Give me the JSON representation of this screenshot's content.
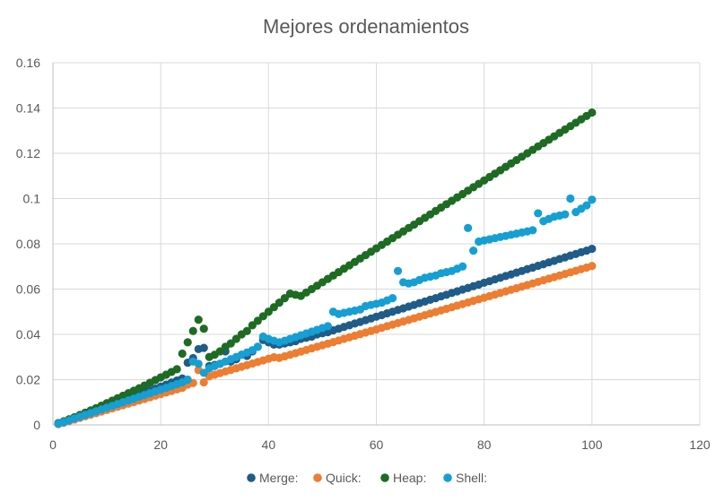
{
  "chart_data": {
    "type": "scatter",
    "title": "Mejores ordenamientos",
    "xlabel": "",
    "ylabel": "",
    "xlim": [
      0,
      120
    ],
    "ylim": [
      0,
      0.16
    ],
    "x_ticks": [
      "0",
      "20",
      "40",
      "60",
      "80",
      "100",
      "120"
    ],
    "y_ticks": [
      "0",
      "0.02",
      "0.04",
      "0.06",
      "0.08",
      "0.1",
      "0.12",
      "0.14",
      "0.16"
    ],
    "grid": true,
    "legend_position": "bottom",
    "x": [
      1,
      2,
      3,
      4,
      5,
      6,
      7,
      8,
      9,
      10,
      11,
      12,
      13,
      14,
      15,
      16,
      17,
      18,
      19,
      20,
      21,
      22,
      23,
      24,
      25,
      26,
      27,
      28,
      29,
      30,
      31,
      32,
      33,
      34,
      35,
      36,
      37,
      38,
      39,
      40,
      41,
      42,
      43,
      44,
      45,
      46,
      47,
      48,
      49,
      50,
      51,
      52,
      53,
      54,
      55,
      56,
      57,
      58,
      59,
      60,
      61,
      62,
      63,
      64,
      65,
      66,
      67,
      68,
      69,
      70,
      71,
      72,
      73,
      74,
      75,
      76,
      77,
      78,
      79,
      80,
      81,
      82,
      83,
      84,
      85,
      86,
      87,
      88,
      89,
      90,
      91,
      92,
      93,
      94,
      95,
      96,
      97,
      98,
      99,
      100
    ],
    "series": [
      {
        "name": "Merge:",
        "color": "#1f5c87",
        "values": [
          0.0005,
          0.0013,
          0.0021,
          0.0029,
          0.0038,
          0.0046,
          0.0055,
          0.0063,
          0.0072,
          0.0081,
          0.0089,
          0.0098,
          0.0107,
          0.0116,
          0.0125,
          0.0133,
          0.0142,
          0.0151,
          0.016,
          0.0169,
          0.0178,
          0.0187,
          0.0196,
          0.0205,
          0.0275,
          0.0295,
          0.0335,
          0.034,
          0.026,
          0.0265,
          0.027,
          0.0325,
          0.028,
          0.029,
          0.031,
          0.0305,
          0.0325,
          0.0345,
          0.0375,
          0.0365,
          0.0355,
          0.0355,
          0.036,
          0.0365,
          0.037,
          0.038,
          0.0385,
          0.039,
          0.04,
          0.0405,
          0.041,
          0.0418,
          0.0425,
          0.0433,
          0.044,
          0.0448,
          0.0455,
          0.0463,
          0.047,
          0.0478,
          0.0485,
          0.0493,
          0.05,
          0.0508,
          0.0515,
          0.0523,
          0.053,
          0.0538,
          0.0545,
          0.0553,
          0.056,
          0.0568,
          0.0575,
          0.0583,
          0.059,
          0.0598,
          0.0605,
          0.0613,
          0.062,
          0.0628,
          0.0635,
          0.0643,
          0.065,
          0.0658,
          0.0665,
          0.0673,
          0.068,
          0.0688,
          0.0695,
          0.0703,
          0.071,
          0.0718,
          0.0725,
          0.0733,
          0.074,
          0.0748,
          0.0755,
          0.0763,
          0.077,
          0.0778
        ]
      },
      {
        "name": "Quick:",
        "color": "#ed7d31",
        "values": [
          0.0004,
          0.001,
          0.0017,
          0.0024,
          0.0031,
          0.0038,
          0.0045,
          0.0052,
          0.0059,
          0.0066,
          0.0073,
          0.008,
          0.0087,
          0.0094,
          0.0101,
          0.0108,
          0.0115,
          0.0122,
          0.0129,
          0.0136,
          0.0143,
          0.015,
          0.0157,
          0.0164,
          0.0178,
          0.0185,
          0.0242,
          0.0188,
          0.0215,
          0.0222,
          0.0229,
          0.0236,
          0.0243,
          0.025,
          0.0257,
          0.0264,
          0.0271,
          0.0278,
          0.0285,
          0.0292,
          0.0299,
          0.0296,
          0.0303,
          0.031,
          0.0317,
          0.0324,
          0.0331,
          0.0338,
          0.0345,
          0.0352,
          0.0359,
          0.0366,
          0.0373,
          0.038,
          0.0387,
          0.0394,
          0.0401,
          0.0408,
          0.0415,
          0.0422,
          0.0429,
          0.0436,
          0.0443,
          0.045,
          0.0457,
          0.0464,
          0.0471,
          0.0478,
          0.0485,
          0.0492,
          0.0499,
          0.0506,
          0.0513,
          0.052,
          0.0527,
          0.0534,
          0.0541,
          0.0548,
          0.0555,
          0.0562,
          0.0569,
          0.0576,
          0.0583,
          0.059,
          0.0597,
          0.0604,
          0.0611,
          0.0618,
          0.0625,
          0.0632,
          0.0639,
          0.0646,
          0.0653,
          0.066,
          0.0667,
          0.0674,
          0.0681,
          0.0688,
          0.0695,
          0.0702
        ]
      },
      {
        "name": "Heap:",
        "color": "#1e6b24",
        "values": [
          0.0008,
          0.0016,
          0.0025,
          0.0034,
          0.0044,
          0.0054,
          0.0064,
          0.0074,
          0.0085,
          0.0096,
          0.0107,
          0.0118,
          0.0129,
          0.014,
          0.0151,
          0.0162,
          0.0174,
          0.0186,
          0.0198,
          0.021,
          0.0222,
          0.0234,
          0.0246,
          0.0315,
          0.0365,
          0.0415,
          0.0465,
          0.0425,
          0.03,
          0.031,
          0.0325,
          0.0345,
          0.036,
          0.038,
          0.04,
          0.0415,
          0.044,
          0.046,
          0.048,
          0.05,
          0.052,
          0.054,
          0.056,
          0.058,
          0.0575,
          0.057,
          0.0585,
          0.06,
          0.0615,
          0.063,
          0.0645,
          0.066,
          0.0675,
          0.069,
          0.0705,
          0.072,
          0.0735,
          0.075,
          0.0765,
          0.078,
          0.0795,
          0.081,
          0.0825,
          0.084,
          0.0855,
          0.087,
          0.0885,
          0.09,
          0.0915,
          0.093,
          0.0945,
          0.096,
          0.0975,
          0.099,
          0.1005,
          0.102,
          0.1035,
          0.105,
          0.1065,
          0.108,
          0.1095,
          0.111,
          0.1125,
          0.114,
          0.1155,
          0.117,
          0.1185,
          0.12,
          0.1215,
          0.123,
          0.1245,
          0.126,
          0.1275,
          0.129,
          0.1305,
          0.132,
          0.1335,
          0.135,
          0.1365,
          0.138
        ]
      },
      {
        "name": "Shell:",
        "color": "#159fd3",
        "values": [
          0.0005,
          0.0012,
          0.002,
          0.0028,
          0.0036,
          0.0044,
          0.0052,
          0.006,
          0.0068,
          0.0076,
          0.0084,
          0.0092,
          0.01,
          0.0108,
          0.0116,
          0.0124,
          0.0132,
          0.014,
          0.0148,
          0.0156,
          0.0164,
          0.0172,
          0.018,
          0.0188,
          0.02,
          0.028,
          0.027,
          0.023,
          0.025,
          0.026,
          0.027,
          0.028,
          0.029,
          0.03,
          0.031,
          0.032,
          0.033,
          0.0345,
          0.039,
          0.038,
          0.0372,
          0.0365,
          0.0372,
          0.038,
          0.0388,
          0.0396,
          0.0404,
          0.0412,
          0.042,
          0.0428,
          0.0436,
          0.05,
          0.049,
          0.0495,
          0.05,
          0.0505,
          0.051,
          0.0525,
          0.053,
          0.0535,
          0.054,
          0.055,
          0.056,
          0.068,
          0.063,
          0.0625,
          0.063,
          0.064,
          0.065,
          0.0655,
          0.066,
          0.067,
          0.0675,
          0.068,
          0.069,
          0.07,
          0.087,
          0.077,
          0.081,
          0.0815,
          0.082,
          0.0825,
          0.083,
          0.0835,
          0.084,
          0.0845,
          0.085,
          0.0855,
          0.086,
          0.0935,
          0.09,
          0.091,
          0.092,
          0.0925,
          0.093,
          0.1,
          0.094,
          0.0955,
          0.097,
          0.0995
        ]
      }
    ]
  }
}
